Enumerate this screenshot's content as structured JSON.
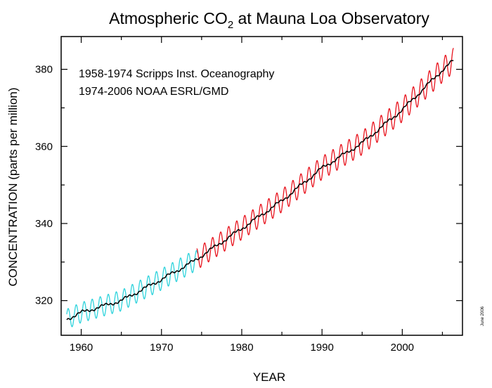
{
  "chart_data": {
    "type": "line",
    "title_main": "Atmospheric CO",
    "title_sub": "2",
    "title_rest": " at Mauna Loa Observatory",
    "xlabel": "YEAR",
    "ylabel": "CONCENTRATION (parts per million)",
    "xlim": [
      1957.5,
      2007.5
    ],
    "ylim": [
      311,
      388.5
    ],
    "xticks": [
      1960,
      1970,
      1980,
      1990,
      2000
    ],
    "yticks": [
      320,
      340,
      360,
      380
    ],
    "grid": false,
    "annotations": [
      "1958-1974 Scripps Inst. Oceanography",
      "1974-2006 NOAA ESRL/GMD"
    ],
    "side_note": "June 2006",
    "series": [
      {
        "color": "#2fd3dc",
        "kind": "monthly",
        "range": [
          1958.2,
          1974.5
        ],
        "trend_points": [
          [
            1958,
            315.0
          ],
          [
            1960,
            316.9
          ],
          [
            1965,
            320.0
          ],
          [
            1970,
            325.5
          ],
          [
            1974,
            330.2
          ]
        ]
      },
      {
        "color": "#e8141e",
        "kind": "monthly",
        "range": [
          1974.4,
          2006.4
        ],
        "trend_points": [
          [
            1974,
            330.2
          ],
          [
            1980,
            338.7
          ],
          [
            1985,
            345.9
          ],
          [
            1990,
            354.4
          ],
          [
            1995,
            360.9
          ],
          [
            2000,
            369.5
          ],
          [
            2005,
            379.8
          ],
          [
            2006.5,
            382.5
          ]
        ]
      },
      {
        "color": "#000000",
        "kind": "trend",
        "range": [
          1958.2,
          2006.4
        ],
        "trend_points": [
          [
            1958,
            315.0
          ],
          [
            1960,
            316.9
          ],
          [
            1965,
            320.0
          ],
          [
            1970,
            325.5
          ],
          [
            1974,
            330.2
          ],
          [
            1980,
            338.7
          ],
          [
            1985,
            345.9
          ],
          [
            1990,
            354.4
          ],
          [
            1995,
            360.9
          ],
          [
            2000,
            369.5
          ],
          [
            2005,
            379.8
          ],
          [
            2006.5,
            382.5
          ]
        ]
      }
    ]
  }
}
